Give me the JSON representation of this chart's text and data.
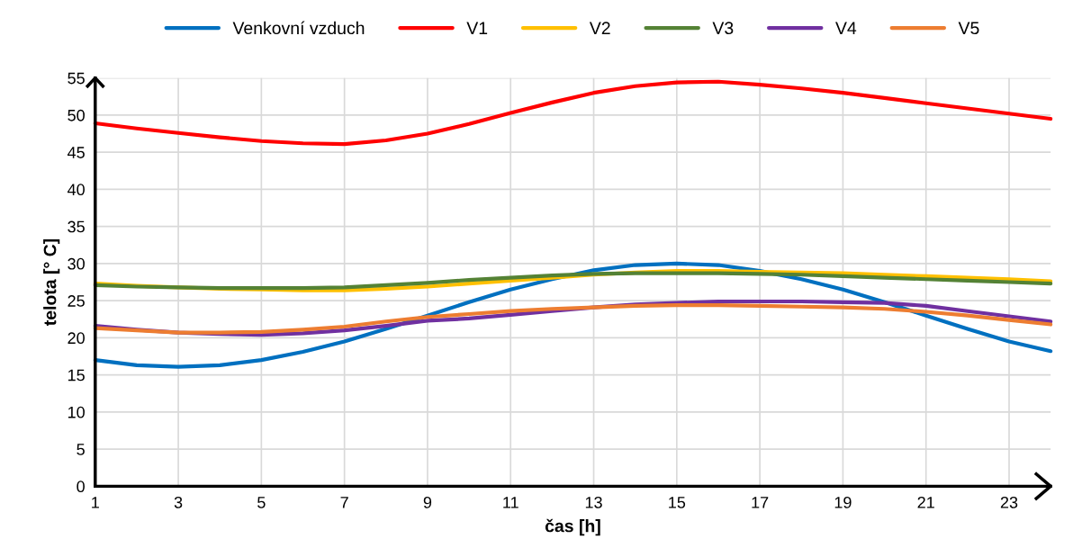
{
  "chart_data": {
    "type": "line",
    "xlabel": "čas [h]",
    "ylabel": "telota [° C]",
    "x": [
      1,
      2,
      3,
      4,
      5,
      6,
      7,
      8,
      9,
      10,
      11,
      12,
      13,
      14,
      15,
      16,
      17,
      18,
      19,
      20,
      21,
      22,
      23,
      24
    ],
    "xlim": [
      1,
      24
    ],
    "xticks": [
      1,
      3,
      5,
      7,
      9,
      11,
      13,
      15,
      17,
      19,
      21,
      23
    ],
    "ylim": [
      0,
      55
    ],
    "yticks": [
      0,
      5,
      10,
      15,
      20,
      25,
      30,
      35,
      40,
      45,
      50,
      55
    ],
    "grid": true,
    "legend": "top",
    "marker": "none",
    "line_style": "solid",
    "series": [
      {
        "name": "Venkovní vzduch",
        "color": "#0070c0",
        "values": [
          17,
          16.3,
          16.1,
          16.3,
          17,
          18.1,
          19.5,
          21.2,
          23,
          24.8,
          26.5,
          27.9,
          29.1,
          29.8,
          30.0,
          29.8,
          29.0,
          27.9,
          26.5,
          24.8,
          23.0,
          21.2,
          19.5,
          18.2
        ]
      },
      {
        "name": "V1",
        "color": "#ff0000",
        "values": [
          48.9,
          48.2,
          47.6,
          47.0,
          46.5,
          46.2,
          46.1,
          46.6,
          47.5,
          48.8,
          50.3,
          51.7,
          53.0,
          53.9,
          54.4,
          54.5,
          54.1,
          53.6,
          53.0,
          52.3,
          51.6,
          50.9,
          50.2,
          49.5
        ]
      },
      {
        "name": "V2",
        "color": "#ffc000",
        "values": [
          27.3,
          27.0,
          26.8,
          26.6,
          26.5,
          26.4,
          26.4,
          26.6,
          26.9,
          27.3,
          27.7,
          28.1,
          28.5,
          28.8,
          29.0,
          29.0,
          28.9,
          28.8,
          28.7,
          28.5,
          28.3,
          28.1,
          27.9,
          27.6
        ]
      },
      {
        "name": "V3",
        "color": "#548235",
        "values": [
          27.1,
          26.9,
          26.8,
          26.7,
          26.7,
          26.7,
          26.8,
          27.1,
          27.4,
          27.8,
          28.1,
          28.4,
          28.6,
          28.7,
          28.7,
          28.7,
          28.6,
          28.5,
          28.3,
          28.1,
          27.9,
          27.7,
          27.5,
          27.3
        ]
      },
      {
        "name": "V4",
        "color": "#7030a0",
        "values": [
          21.6,
          21.1,
          20.7,
          20.5,
          20.4,
          20.6,
          21.0,
          21.6,
          22.3,
          22.6,
          23.1,
          23.6,
          24.1,
          24.5,
          24.7,
          24.9,
          24.9,
          24.9,
          24.8,
          24.7,
          24.3,
          23.6,
          22.9,
          22.2
        ]
      },
      {
        "name": "V5",
        "color": "#ed7d31",
        "values": [
          21.3,
          21.0,
          20.7,
          20.7,
          20.8,
          21.1,
          21.5,
          22.2,
          22.8,
          23.2,
          23.6,
          23.9,
          24.1,
          24.3,
          24.4,
          24.4,
          24.3,
          24.2,
          24.1,
          23.9,
          23.5,
          23.0,
          22.4,
          21.8
        ]
      }
    ]
  }
}
